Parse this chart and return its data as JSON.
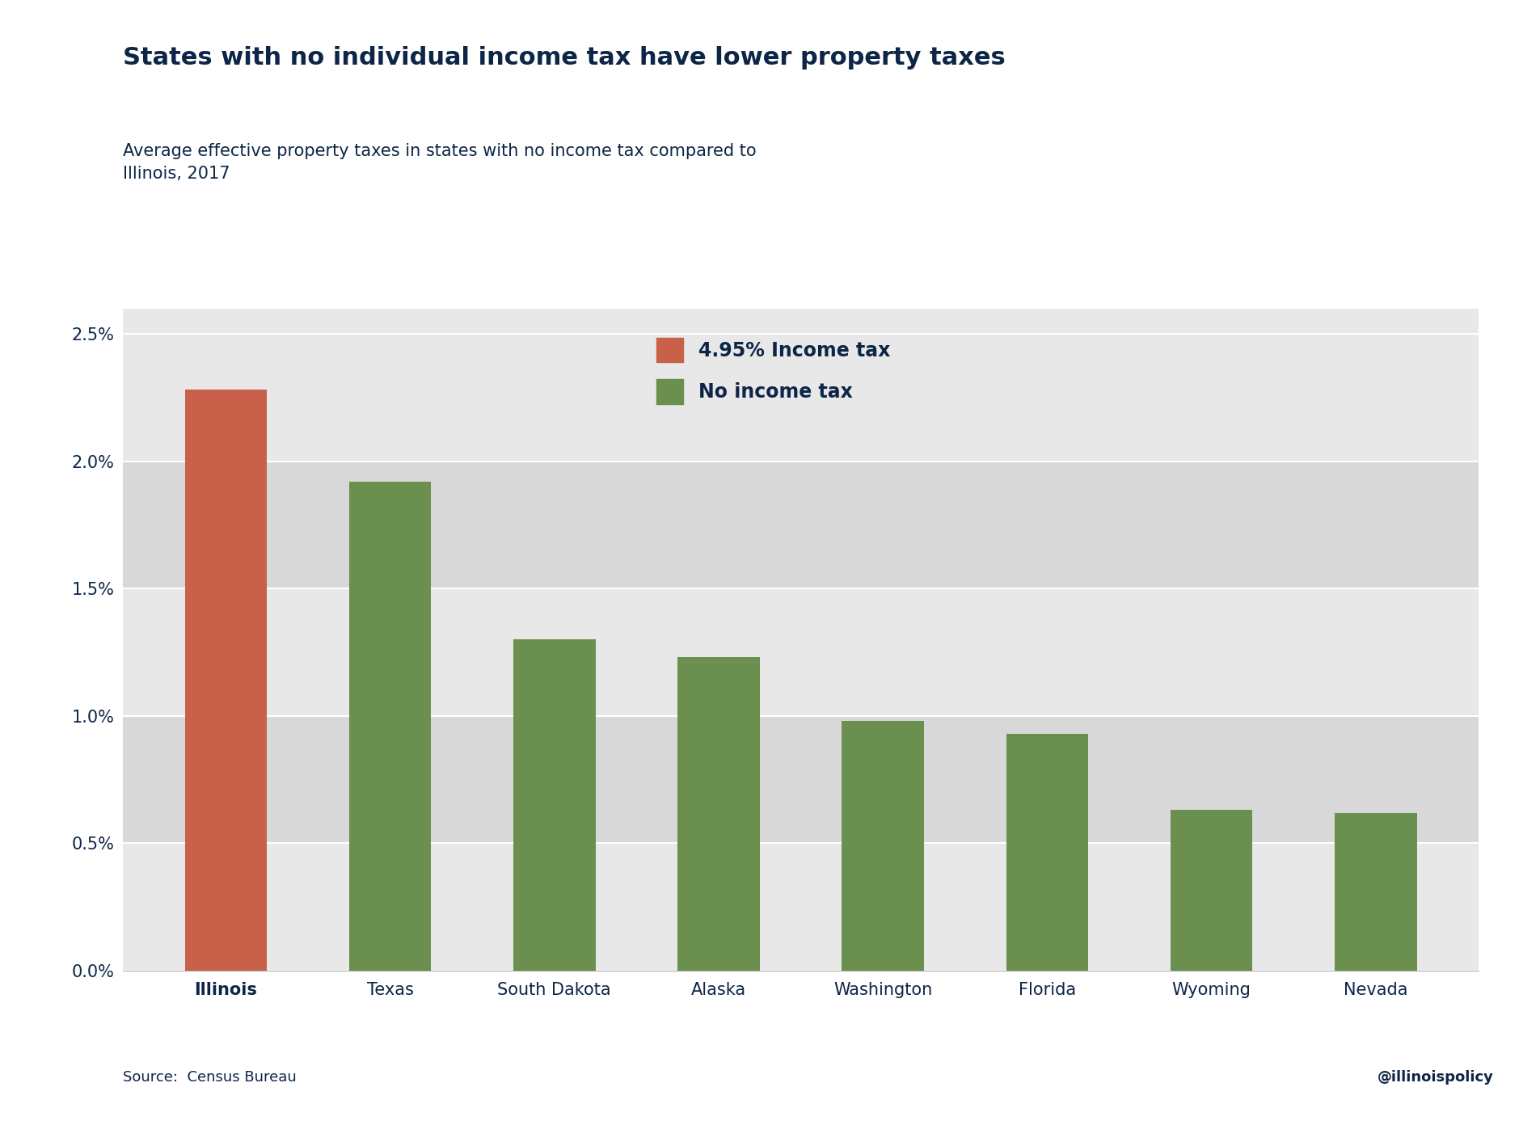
{
  "title": "States with no individual income tax have lower property taxes",
  "subtitle": "Average effective property taxes in states with no income tax compared to\nIllinois, 2017",
  "categories": [
    "Illinois",
    "Texas",
    "South Dakota",
    "Alaska",
    "Washington",
    "Florida",
    "Wyoming",
    "Nevada"
  ],
  "values": [
    0.0228,
    0.0192,
    0.013,
    0.0123,
    0.0098,
    0.0093,
    0.0063,
    0.0062
  ],
  "colors": [
    "#C8604A",
    "#6B8F4E",
    "#6B8F4E",
    "#6B8F4E",
    "#6B8F4E",
    "#6B8F4E",
    "#6B8F4E",
    "#6B8F4E"
  ],
  "legend_labels": [
    "4.95% Income tax",
    "No income tax"
  ],
  "legend_colors": [
    "#C8604A",
    "#6B8F4E"
  ],
  "band_colors": [
    "#E8E8E8",
    "#D8D8D8"
  ],
  "plot_bg_color": "#E8E8E8",
  "outer_bg_color": "#FFFFFF",
  "title_color": "#0D2647",
  "subtitle_color": "#0D2647",
  "tick_label_color": "#0D2647",
  "source_text": "Source:  Census Bureau",
  "watermark_text": "@illinoispolicy",
  "ylim": [
    0,
    0.026
  ],
  "yticks": [
    0.0,
    0.005,
    0.01,
    0.015,
    0.02,
    0.025
  ],
  "ytick_labels": [
    "0.0%",
    "0.5%",
    "1.0%",
    "1.5%",
    "2.0%",
    "2.5%"
  ],
  "title_fontsize": 22,
  "subtitle_fontsize": 15,
  "tick_fontsize": 15,
  "bar_width": 0.5
}
